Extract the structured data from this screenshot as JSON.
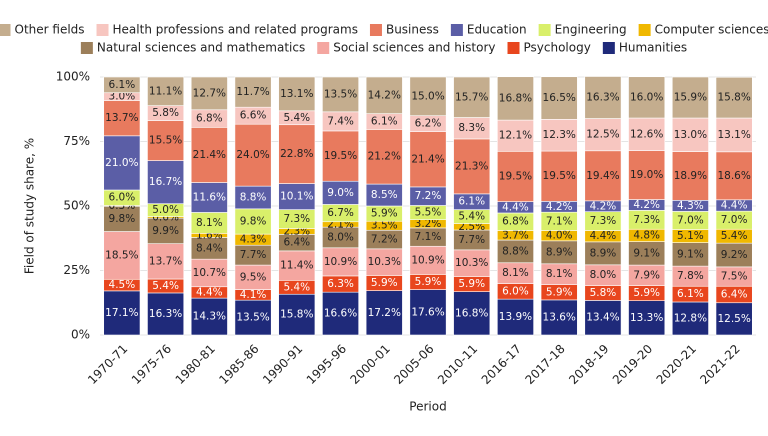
{
  "chart_data": {
    "type": "stacked-bar",
    "x_label": "Period",
    "y_label": "Field of study share, %",
    "categories": [
      "1970-71",
      "1975-76",
      "1980-81",
      "1985-86",
      "1990-91",
      "1995-96",
      "2000-01",
      "2005-06",
      "2010-11",
      "2016-17",
      "2017-18",
      "2018-19",
      "2019-20",
      "2020-21",
      "2021-22"
    ],
    "ylim": [
      0,
      100
    ],
    "yticks": [
      {
        "value": 0,
        "label": "0%"
      },
      {
        "value": 25,
        "label": "25%"
      },
      {
        "value": 50,
        "label": "50%"
      },
      {
        "value": 75,
        "label": "75%"
      },
      {
        "value": 100,
        "label": "100%"
      }
    ],
    "series": [
      {
        "name": "Humanities",
        "color": "#1f2a7a",
        "values": [
          17.1,
          16.3,
          14.3,
          13.5,
          15.8,
          16.6,
          17.2,
          17.6,
          16.8,
          13.9,
          13.6,
          13.4,
          13.3,
          12.8,
          12.5
        ],
        "value_labels": [
          "17.1%",
          "16.3%",
          "14.3%",
          "13.5%",
          "15.8%",
          "16.6%",
          "17.2%",
          "17.6%",
          "16.8%",
          "13.9%",
          "13.6%",
          "13.4%",
          "13.3%",
          "12.8%",
          "12.5%"
        ]
      },
      {
        "name": "Psychology",
        "color": "#e8461e",
        "values": [
          4.5,
          5.4,
          4.4,
          4.1,
          5.4,
          6.3,
          5.9,
          5.9,
          5.9,
          6.0,
          5.9,
          5.8,
          5.9,
          6.1,
          6.4
        ],
        "value_labels": [
          "4.5%",
          "5.4%",
          "4.4%",
          "4.1%",
          "5.4%",
          "6.3%",
          "5.9%",
          "5.9%",
          "5.9%",
          "6.0%",
          "5.9%",
          "5.8%",
          "5.9%",
          "6.1%",
          "6.4%"
        ]
      },
      {
        "name": "Social sciences and history",
        "color": "#f4a6a0",
        "values": [
          18.5,
          13.7,
          10.7,
          9.5,
          11.4,
          10.9,
          10.3,
          10.9,
          10.3,
          8.1,
          8.1,
          8.0,
          7.9,
          7.8,
          7.5
        ],
        "value_labels": [
          "18.5%",
          "13.7%",
          "10.7%",
          "9.5%",
          "11.4%",
          "10.9%",
          "10.3%",
          "10.9%",
          "10.3%",
          "8.1%",
          "8.1%",
          "8.0%",
          "7.9%",
          "7.8%",
          "7.5%"
        ]
      },
      {
        "name": "Natural sciences and mathematics",
        "color": "#9c7f5a",
        "values": [
          9.8,
          9.9,
          8.4,
          7.7,
          6.4,
          8.0,
          7.2,
          7.1,
          7.7,
          8.8,
          8.9,
          8.9,
          9.1,
          9.1,
          9.2
        ],
        "value_labels": [
          "9.8%",
          "9.9%",
          "8.4%",
          "7.7%",
          "6.4%",
          "8.0%",
          "7.2%",
          "7.1%",
          "7.7%",
          "8.8%",
          "8.9%",
          "8.9%",
          "9.1%",
          "9.1%",
          "9.2%"
        ]
      },
      {
        "name": "Computer sciences",
        "color": "#f0b800",
        "values": [
          0.3,
          0.6,
          1.6,
          4.3,
          2.3,
          2.1,
          3.5,
          3.2,
          2.5,
          3.7,
          4.0,
          4.4,
          4.8,
          5.1,
          5.4
        ],
        "value_labels": [
          "0.3%",
          "0.6%",
          "1.6%",
          "4.3%",
          "2.3%",
          "2.1%",
          "3.5%",
          "3.2%",
          "2.5%",
          "3.7%",
          "4.0%",
          "4.4%",
          "4.8%",
          "5.1%",
          "5.4%"
        ]
      },
      {
        "name": "Engineering",
        "color": "#d9ef6a",
        "values": [
          6.0,
          5.0,
          8.1,
          9.8,
          7.3,
          6.7,
          5.9,
          5.5,
          5.4,
          6.8,
          7.1,
          7.3,
          7.3,
          7.0,
          7.0
        ],
        "value_labels": [
          "6.0%",
          "5.0%",
          "8.1%",
          "9.8%",
          "7.3%",
          "6.7%",
          "5.9%",
          "5.5%",
          "5.4%",
          "6.8%",
          "7.1%",
          "7.3%",
          "7.3%",
          "7.0%",
          "7.0%"
        ]
      },
      {
        "name": "Education",
        "color": "#5b5ea6",
        "values": [
          21.0,
          16.7,
          11.6,
          8.8,
          10.1,
          9.0,
          8.5,
          7.2,
          6.1,
          4.4,
          4.2,
          4.2,
          4.2,
          4.3,
          4.4
        ],
        "value_labels": [
          "21.0%",
          "16.7%",
          "11.6%",
          "8.8%",
          "10.1%",
          "9.0%",
          "8.5%",
          "7.2%",
          "6.1%",
          "4.4%",
          "4.2%",
          "4.2%",
          "4.2%",
          "4.3%",
          "4.4%"
        ]
      },
      {
        "name": "Business",
        "color": "#e87a5e",
        "values": [
          13.7,
          15.5,
          21.4,
          24.0,
          22.8,
          19.5,
          21.2,
          21.4,
          21.3,
          19.5,
          19.5,
          19.4,
          19.0,
          18.9,
          18.6
        ],
        "value_labels": [
          "13.7%",
          "15.5%",
          "21.4%",
          "24.0%",
          "22.8%",
          "19.5%",
          "21.2%",
          "21.4%",
          "21.3%",
          "19.5%",
          "19.5%",
          "19.4%",
          "19.0%",
          "18.9%",
          "18.6%"
        ]
      },
      {
        "name": "Health professions and related programs",
        "color": "#f7c6c0",
        "values": [
          3.0,
          5.8,
          6.8,
          6.6,
          5.4,
          7.4,
          6.1,
          6.2,
          8.3,
          12.1,
          12.3,
          12.5,
          12.6,
          13.0,
          13.1
        ],
        "value_labels": [
          "3.0%",
          "5.8%",
          "6.8%",
          "6.6%",
          "5.4%",
          "7.4%",
          "6.1%",
          "6.2%",
          "8.3%",
          "12.1%",
          "12.3%",
          "12.5%",
          "12.6%",
          "13.0%",
          "13.1%"
        ]
      },
      {
        "name": "Other fields",
        "color": "#c4ad8e",
        "values": [
          6.1,
          11.1,
          12.7,
          11.7,
          13.1,
          13.5,
          14.2,
          15.0,
          15.7,
          16.8,
          16.5,
          16.3,
          16.0,
          15.9,
          15.8
        ],
        "value_labels": [
          "6.1%",
          "11.1%",
          "12.7%",
          "11.7%",
          "13.1%",
          "13.5%",
          "14.2%",
          "15.0%",
          "15.7%",
          "16.8%",
          "16.5%",
          "16.3%",
          "16.0%",
          "15.9%",
          "15.8%"
        ]
      }
    ]
  }
}
